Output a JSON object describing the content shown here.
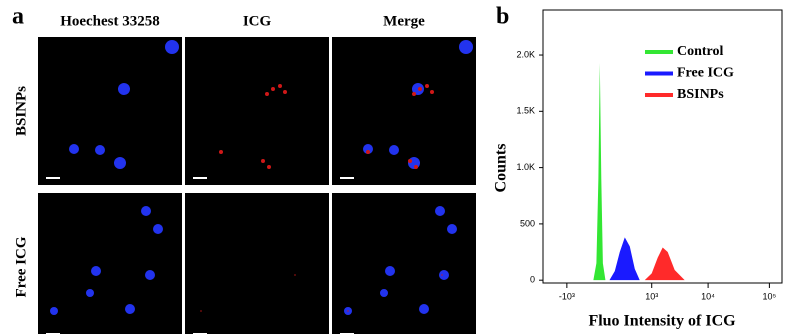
{
  "panel_a": {
    "label": "a",
    "columns": [
      "Hoechest 33258",
      "ICG",
      "Merge"
    ],
    "rows": [
      "BSINPs",
      "Free ICG"
    ]
  },
  "panel_b_label": "b",
  "chart_data": {
    "type": "area",
    "xscale": "symlog",
    "xlabel": "Fluo Intensity of ICG",
    "ylabel": "Counts",
    "xlim": [
      -2800,
      160000
    ],
    "ylim": [
      -25,
      2400
    ],
    "xticks": [
      {
        "value": -1000,
        "label": "-10³"
      },
      {
        "value": 1000,
        "label": "10³"
      },
      {
        "value": 10000,
        "label": "10⁴"
      },
      {
        "value": 100000,
        "label": "10⁵"
      }
    ],
    "yticks": [
      0,
      500,
      {
        "value": 1000,
        "label": "1.0K"
      },
      {
        "value": 1500,
        "label": "1.5K"
      },
      {
        "value": 2000,
        "label": "2.0K"
      }
    ],
    "legend": "upper right",
    "series": [
      {
        "name": "Control",
        "color": "#33e633",
        "x": [
          -210,
          -160,
          -130,
          -110,
          -90,
          -70,
          -40
        ],
        "values": [
          0,
          150,
          900,
          1930,
          900,
          150,
          0
        ]
      },
      {
        "name": "Free ICG",
        "color": "#1a1aff",
        "x": [
          2,
          59,
          124,
          203,
          297,
          411,
          546
        ],
        "values": [
          0,
          80,
          250,
          380,
          300,
          100,
          0
        ]
      },
      {
        "name": "BSINPs",
        "color": "#ff2a2a",
        "x": [
          712,
          1000,
          1315,
          1635,
          2024,
          2700,
          4030
        ],
        "values": [
          0,
          60,
          200,
          290,
          250,
          90,
          0
        ]
      }
    ]
  }
}
